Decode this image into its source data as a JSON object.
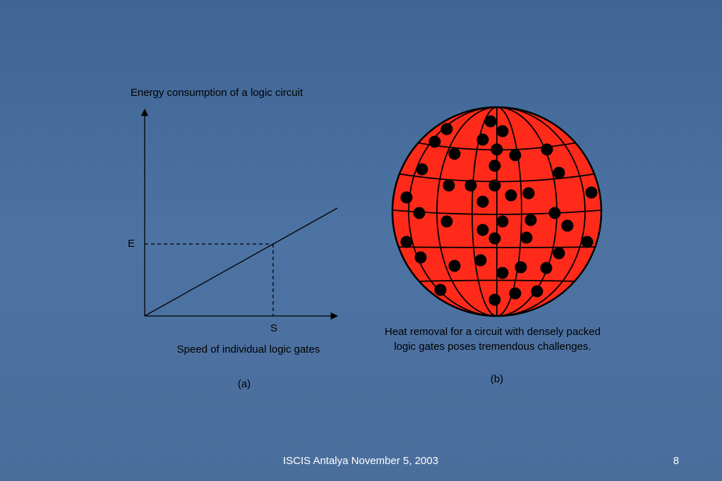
{
  "panel_a": {
    "y_axis_label": "Energy consumption of a logic circuit",
    "e_label": "E",
    "s_label": "S",
    "x_axis_label": "Speed of individual logic gates",
    "tag": "(a)"
  },
  "panel_b": {
    "caption": [
      "Heat removal for a circuit with densely packed",
      "logic gates poses tremendous challenges."
    ],
    "tag": "(b)"
  },
  "footer": {
    "text": "ISCIS Antalya November 5, 2003",
    "page": "8"
  }
}
